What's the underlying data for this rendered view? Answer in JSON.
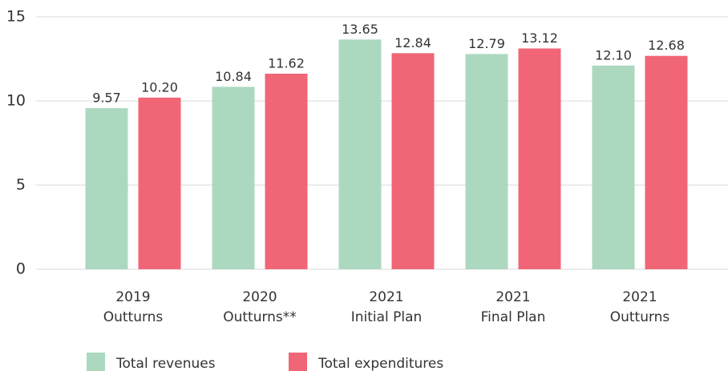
{
  "chart_data": {
    "type": "bar",
    "categories": [
      [
        "2019",
        "Outturns"
      ],
      [
        "2020",
        "Outturns**"
      ],
      [
        "2021",
        "Initial Plan"
      ],
      [
        "2021",
        "Final Plan"
      ],
      [
        "2021",
        "Outturns"
      ]
    ],
    "series": [
      {
        "name": "Total revenues",
        "color": "#acd8bf",
        "values": [
          9.57,
          10.84,
          13.65,
          12.79,
          12.1
        ],
        "value_labels": [
          "9.57",
          "10.84",
          "13.65",
          "12.79",
          "12.10"
        ]
      },
      {
        "name": "Total expenditures",
        "color": "#f06677",
        "values": [
          10.2,
          11.62,
          12.84,
          13.12,
          12.68
        ],
        "value_labels": [
          "10.20",
          "11.62",
          "12.84",
          "13.12",
          "12.68"
        ]
      }
    ],
    "ylim": [
      0,
      15
    ],
    "yticks": [
      0,
      5,
      10,
      15
    ],
    "grid": true,
    "legend": "bottom"
  }
}
